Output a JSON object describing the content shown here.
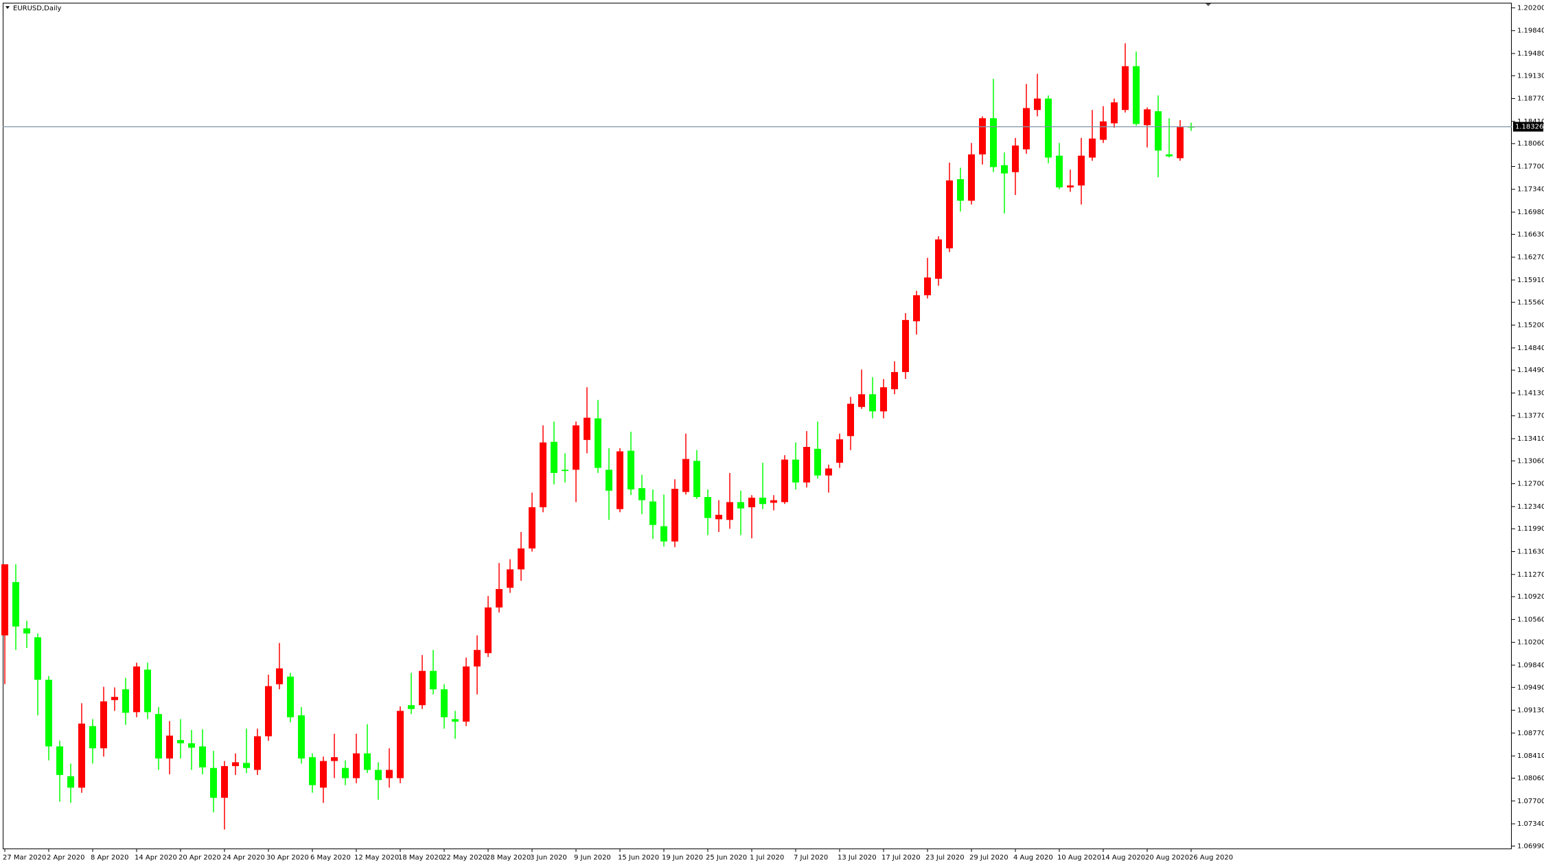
{
  "chart_data": {
    "type": "candlestick",
    "title": "EURUSD,Daily",
    "up_color": "#ff0000",
    "down_color": "#00ff00",
    "price_line_color": "#7f95a6",
    "current_price": 1.18326,
    "categories": [
      "27 Mar 2020",
      null,
      null,
      null,
      "2 Apr 2020",
      null,
      null,
      null,
      "8 Apr 2020",
      null,
      null,
      null,
      "14 Apr 2020",
      null,
      null,
      null,
      "20 Apr 2020",
      null,
      null,
      null,
      "24 Apr 2020",
      null,
      null,
      null,
      "30 Apr 2020",
      null,
      null,
      null,
      "6 May 2020",
      null,
      null,
      null,
      "12 May 2020",
      null,
      null,
      null,
      "18 May 2020",
      null,
      null,
      null,
      "22 May 2020",
      null,
      null,
      null,
      "28 May 2020",
      null,
      null,
      null,
      "3 Jun 2020",
      null,
      null,
      null,
      "9 Jun 2020",
      null,
      null,
      null,
      "15 Jun 2020",
      null,
      null,
      null,
      "19 Jun 2020",
      null,
      null,
      null,
      "25 Jun 2020",
      null,
      null,
      null,
      "1 Jul 2020",
      null,
      null,
      null,
      "7 Jul 2020",
      null,
      null,
      null,
      "13 Jul 2020",
      null,
      null,
      null,
      "17 Jul 2020",
      null,
      null,
      null,
      "23 Jul 2020",
      null,
      null,
      null,
      "29 Jul 2020",
      null,
      null,
      null,
      "4 Aug 2020",
      null,
      null,
      null,
      "10 Aug 2020",
      null,
      null,
      null,
      "14 Aug 2020",
      null,
      null,
      null,
      "20 Aug 2020",
      null,
      null,
      null,
      "26 Aug 2020"
    ],
    "open": [
      1.1031,
      1.1115,
      1.1042,
      1.1028,
      1.0961,
      1.0856,
      1.0809,
      1.0791,
      1.0888,
      1.0853,
      1.0929,
      1.0946,
      1.091,
      1.0977,
      1.0907,
      1.0837,
      1.0866,
      1.0861,
      1.0856,
      1.0822,
      1.0775,
      1.0825,
      1.083,
      1.0819,
      1.0872,
      1.0954,
      1.0966,
      1.0905,
      1.0839,
      1.0791,
      1.0833,
      1.0822,
      1.0806,
      1.0845,
      1.0819,
      1.0806,
      1.0806,
      1.0921,
      1.0921,
      1.0975,
      1.0946,
      1.0899,
      1.0895,
      1.0982,
      1.1003,
      1.1075,
      1.1106,
      1.1135,
      1.1168,
      1.1233,
      1.1336,
      1.1292,
      1.1292,
      1.1339,
      1.1373,
      1.1292,
      1.123,
      1.1322,
      1.1263,
      1.1242,
      1.1203,
      1.1179,
      1.1257,
      1.1306,
      1.1249,
      1.1214,
      1.1213,
      1.1241,
      1.1233,
      1.1248,
      1.124,
      1.1241,
      1.1308,
      1.1272,
      1.1325,
      1.1283,
      1.1303,
      1.1345,
      1.1391,
      1.1411,
      1.1384,
      1.1419,
      1.1446,
      1.1526,
      1.1567,
      1.1593,
      1.1641,
      1.175,
      1.1716,
      1.1789,
      1.1846,
      1.1772,
      1.1761,
      1.1797,
      1.1859,
      1.1877,
      1.1787,
      1.1737,
      1.174,
      1.1784,
      1.1812,
      1.1838,
      1.1859,
      1.1928,
      1.1835,
      1.1857,
      1.1789,
      1.1783,
      1.1833
    ],
    "high": [
      1.1143,
      1.1143,
      1.1054,
      1.1034,
      1.0967,
      1.0865,
      1.0829,
      1.0924,
      1.0899,
      1.095,
      1.0949,
      1.0964,
      1.0988,
      1.0988,
      1.0918,
      1.0896,
      1.0899,
      1.0882,
      1.0883,
      1.0849,
      1.0833,
      1.0845,
      1.0884,
      1.0884,
      1.0969,
      1.1019,
      1.0972,
      1.0918,
      1.0845,
      1.084,
      1.0876,
      1.0834,
      1.0876,
      1.0891,
      1.0831,
      1.0853,
      1.0919,
      1.0972,
      1.1,
      1.1008,
      1.0954,
      1.0912,
      1.0996,
      1.1031,
      1.1093,
      1.1145,
      1.1151,
      1.1194,
      1.1256,
      1.1362,
      1.1368,
      1.1318,
      1.1368,
      1.1422,
      1.1402,
      1.1326,
      1.1326,
      1.1352,
      1.1284,
      1.1261,
      1.1253,
      1.1277,
      1.1349,
      1.1323,
      1.1261,
      1.1244,
      1.1287,
      1.1259,
      1.1252,
      1.1303,
      1.1252,
      1.1315,
      1.1335,
      1.1353,
      1.1368,
      1.13,
      1.1349,
      1.1407,
      1.145,
      1.1438,
      1.1435,
      1.1463,
      1.1539,
      1.1574,
      1.1626,
      1.166,
      1.1776,
      1.1768,
      1.1807,
      1.1849,
      1.1908,
      1.1792,
      1.1815,
      1.19,
      1.1916,
      1.1882,
      1.1807,
      1.1765,
      1.1815,
      1.1859,
      1.1865,
      1.1877,
      1.1964,
      1.1951,
      1.1863,
      1.1882,
      1.1846,
      1.1843,
      1.1839
    ],
    "low": [
      1.0954,
      1.1008,
      1.1011,
      1.0905,
      1.0834,
      1.0769,
      1.0767,
      1.0783,
      1.0829,
      1.084,
      1.0912,
      1.089,
      1.0902,
      1.0899,
      1.0819,
      1.0812,
      1.0837,
      1.0819,
      1.0812,
      1.0752,
      1.0725,
      1.0811,
      1.0814,
      1.0811,
      1.0865,
      1.0946,
      1.0894,
      1.0829,
      1.0783,
      1.0767,
      1.0806,
      1.0795,
      1.0798,
      1.0814,
      1.0772,
      1.0791,
      1.0798,
      1.0907,
      1.0915,
      1.0938,
      1.0884,
      1.0868,
      1.0888,
      1.0938,
      1.0997,
      1.1067,
      1.1098,
      1.1117,
      1.1163,
      1.1225,
      1.1269,
      1.1272,
      1.1241,
      1.1318,
      1.1287,
      1.1213,
      1.1225,
      1.1252,
      1.1222,
      1.1183,
      1.1171,
      1.117,
      1.1253,
      1.1246,
      1.1189,
      1.1194,
      1.1199,
      1.1189,
      1.1184,
      1.123,
      1.1228,
      1.1238,
      1.1261,
      1.1264,
      1.1278,
      1.1256,
      1.1295,
      1.1323,
      1.1388,
      1.1373,
      1.1373,
      1.1411,
      1.1435,
      1.1505,
      1.1562,
      1.1582,
      1.1635,
      1.1699,
      1.171,
      1.1773,
      1.1761,
      1.1696,
      1.1725,
      1.179,
      1.1849,
      1.1775,
      1.1734,
      1.173,
      1.171,
      1.1779,
      1.1807,
      1.1831,
      1.1855,
      1.1834,
      1.18,
      1.1753,
      1.1784,
      1.1779,
      1.1826
    ],
    "close": [
      1.1143,
      1.1045,
      1.1034,
      1.0961,
      1.0856,
      1.0811,
      1.0791,
      1.0892,
      1.0853,
      1.0927,
      1.0934,
      1.0909,
      1.0982,
      1.091,
      1.0837,
      1.0873,
      1.0861,
      1.0854,
      1.0823,
      1.0775,
      1.0825,
      1.0831,
      1.0822,
      1.0872,
      1.0951,
      1.0979,
      1.0902,
      1.0837,
      1.0795,
      1.0833,
      1.0839,
      1.0806,
      1.0845,
      1.0819,
      1.0803,
      1.0819,
      1.0912,
      1.0915,
      1.0975,
      1.0946,
      1.0902,
      1.0895,
      1.0982,
      1.1008,
      1.1075,
      1.1104,
      1.1135,
      1.1168,
      1.1233,
      1.1335,
      1.1287,
      1.129,
      1.1362,
      1.1374,
      1.1295,
      1.1259,
      1.1321,
      1.1261,
      1.1244,
      1.1205,
      1.1179,
      1.1262,
      1.1309,
      1.1249,
      1.1216,
      1.1221,
      1.1241,
      1.1231,
      1.1248,
      1.1238,
      1.1244,
      1.1308,
      1.1272,
      1.1328,
      1.1283,
      1.1294,
      1.134,
      1.1396,
      1.1411,
      1.1384,
      1.1422,
      1.1446,
      1.1528,
      1.1567,
      1.1595,
      1.1655,
      1.1748,
      1.1716,
      1.1789,
      1.1846,
      1.1769,
      1.1759,
      1.1803,
      1.1862,
      1.1877,
      1.1784,
      1.1737,
      1.174,
      1.1787,
      1.1814,
      1.1841,
      1.1871,
      1.1928,
      1.1837,
      1.186,
      1.1795,
      1.1786,
      1.1832,
      1.1832
    ],
    "ylim": [
      1.0694,
      1.2028
    ],
    "yticks": [
      {
        "value": 1.0699,
        "label": "1.06990"
      },
      {
        "value": 1.0734,
        "label": "1.07340"
      },
      {
        "value": 1.077,
        "label": "1.07700"
      },
      {
        "value": 1.0806,
        "label": "1.08060"
      },
      {
        "value": 1.0841,
        "label": "1.08410"
      },
      {
        "value": 1.0877,
        "label": "1.08770"
      },
      {
        "value": 1.0913,
        "label": "1.09130"
      },
      {
        "value": 1.0949,
        "label": "1.09490"
      },
      {
        "value": 1.0984,
        "label": "1.09840"
      },
      {
        "value": 1.102,
        "label": "1.10200"
      },
      {
        "value": 1.1056,
        "label": "1.10560"
      },
      {
        "value": 1.1092,
        "label": "1.10920"
      },
      {
        "value": 1.1127,
        "label": "1.11270"
      },
      {
        "value": 1.1163,
        "label": "1.11630"
      },
      {
        "value": 1.1199,
        "label": "1.11990"
      },
      {
        "value": 1.1234,
        "label": "1.12340"
      },
      {
        "value": 1.127,
        "label": "1.12700"
      },
      {
        "value": 1.1306,
        "label": "1.13060"
      },
      {
        "value": 1.1341,
        "label": "1.13410"
      },
      {
        "value": 1.1377,
        "label": "1.13770"
      },
      {
        "value": 1.1413,
        "label": "1.14130"
      },
      {
        "value": 1.1449,
        "label": "1.14490"
      },
      {
        "value": 1.1484,
        "label": "1.14840"
      },
      {
        "value": 1.152,
        "label": "1.15200"
      },
      {
        "value": 1.1556,
        "label": "1.15560"
      },
      {
        "value": 1.1591,
        "label": "1.15910"
      },
      {
        "value": 1.1627,
        "label": "1.16270"
      },
      {
        "value": 1.1663,
        "label": "1.16630"
      },
      {
        "value": 1.1698,
        "label": "1.16980"
      },
      {
        "value": 1.1734,
        "label": "1.17340"
      },
      {
        "value": 1.177,
        "label": "1.17700"
      },
      {
        "value": 1.1806,
        "label": "1.18060"
      },
      {
        "value": 1.1841,
        "label": "1.18410"
      },
      {
        "value": 1.1877,
        "label": "1.18770"
      },
      {
        "value": 1.1913,
        "label": "1.19130"
      },
      {
        "value": 1.1948,
        "label": "1.19480"
      },
      {
        "value": 1.1984,
        "label": "1.19840"
      },
      {
        "value": 1.202,
        "label": "1.20200"
      }
    ]
  }
}
